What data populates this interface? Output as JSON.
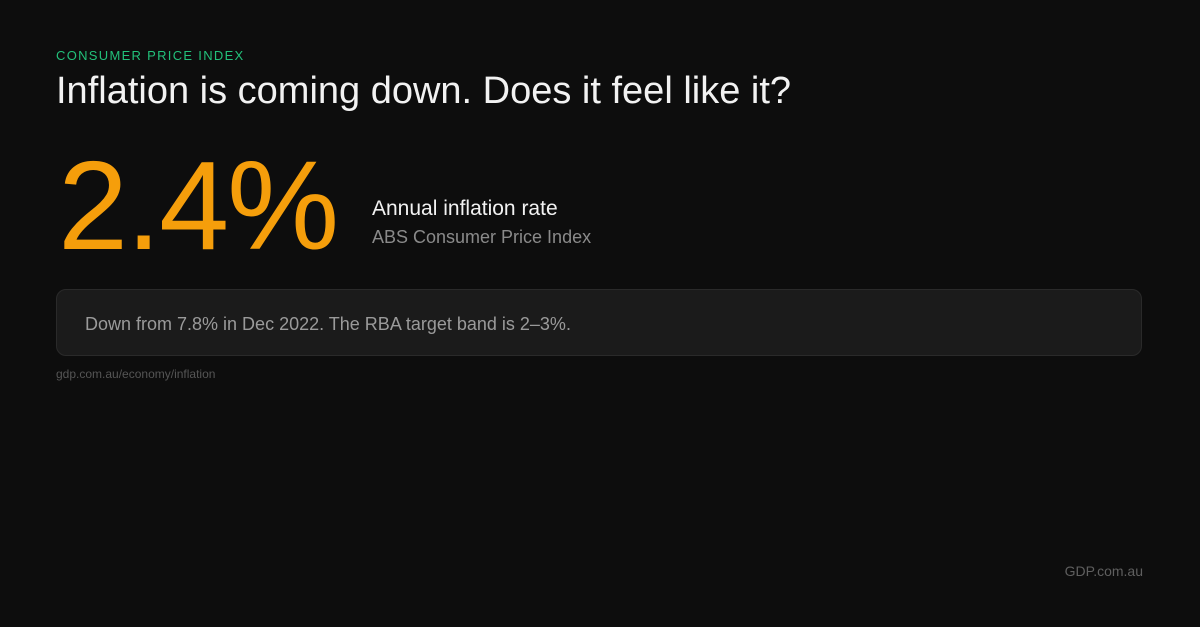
{
  "eyebrow": "CONSUMER PRICE INDEX",
  "title": "Inflation is coming down. Does it feel like it?",
  "stat": {
    "value": "2.4%",
    "label": "Annual inflation rate",
    "source": "ABS Consumer Price Index"
  },
  "note": "Down from 7.8%  in Dec 2022. The RBA target band is 2–3%.",
  "url": "gdp.com.au/economy/inflation",
  "brand": "GDP.com.au",
  "colors": {
    "background": "#0d0d0d",
    "accent": "#f59e0b",
    "eyebrow": "#22c07a"
  }
}
